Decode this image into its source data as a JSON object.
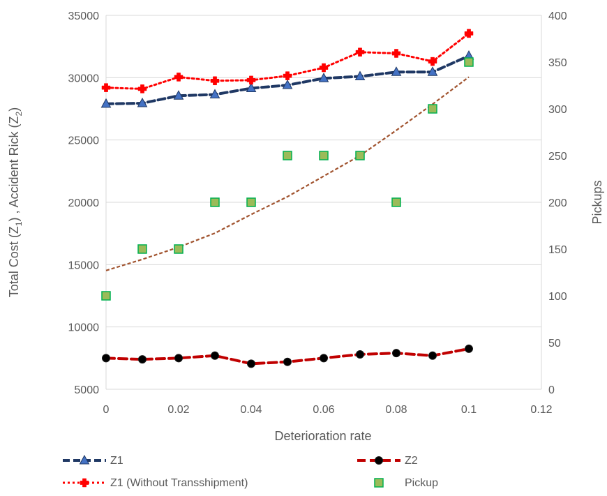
{
  "chart_data": {
    "type": "line",
    "title": "",
    "xlabel": "Deterioration rate",
    "ylabel": {
      "text": "Total Cost (Z",
      "sub1": "1",
      "mid": ") , Accident Rick (Z",
      "sub2": "2",
      "end": ")"
    },
    "y2label": "Pickups",
    "xlim": [
      0,
      0.12
    ],
    "ylim": [
      5000,
      35000
    ],
    "y2lim": [
      0,
      400
    ],
    "x_ticks": [
      "0",
      "0.02",
      "0.04",
      "0.06",
      "0.08",
      "0.1",
      "0.12"
    ],
    "y_ticks": [
      "5000",
      "10000",
      "15000",
      "20000",
      "25000",
      "30000",
      "35000"
    ],
    "y2_ticks": [
      "0",
      "50",
      "100",
      "150",
      "200",
      "250",
      "300",
      "350",
      "400"
    ],
    "grid": "horizontal",
    "legend_position": "bottom",
    "x": [
      0,
      0.01,
      0.02,
      0.03,
      0.04,
      0.05,
      0.06,
      0.07,
      0.08,
      0.09,
      0.1
    ],
    "series": [
      {
        "name": "Z1",
        "axis": "left",
        "color": "#1F3864",
        "marker": "triangle",
        "values": [
          27900,
          27950,
          28550,
          28650,
          29150,
          29400,
          29950,
          30100,
          30450,
          30450,
          31750
        ]
      },
      {
        "name": "Z2",
        "axis": "left",
        "color": "#C00000",
        "marker": "circle",
        "values": [
          7500,
          7400,
          7500,
          7700,
          7050,
          7200,
          7500,
          7800,
          7900,
          7700,
          8250
        ]
      },
      {
        "name": "Z1 (Without Transshipment)",
        "axis": "left",
        "color": "#FF0000",
        "marker": "cross",
        "values": [
          29200,
          29100,
          30050,
          29750,
          29800,
          30150,
          30800,
          32050,
          31950,
          31300,
          33550
        ]
      },
      {
        "name": "Pickup",
        "axis": "right",
        "color": "#9BBB59",
        "marker": "square",
        "style": "scatter",
        "values": [
          100,
          150,
          150,
          200,
          200,
          250,
          250,
          250,
          200,
          300,
          350
        ]
      }
    ],
    "trendline": {
      "of": "Pickup",
      "type": "exponential",
      "color": "#A0522D",
      "values": [
        127,
        139,
        152,
        167,
        187,
        206,
        228,
        250,
        277,
        305,
        334
      ]
    }
  }
}
